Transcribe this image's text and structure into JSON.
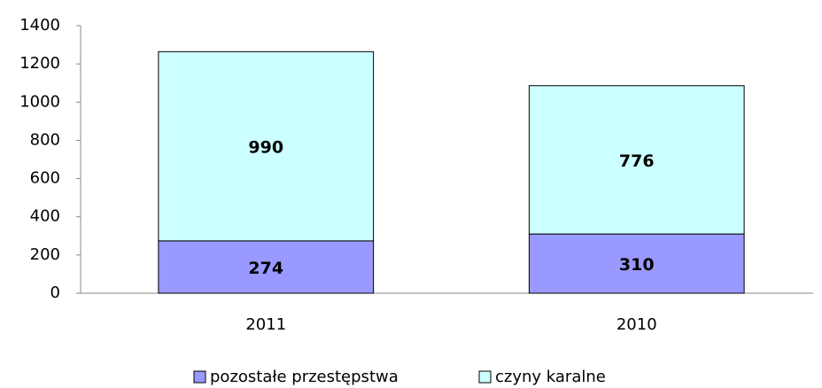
{
  "chart_data": {
    "type": "bar",
    "stacked": true,
    "categories": [
      "2011",
      "2010"
    ],
    "series": [
      {
        "name": "pozostałe przestępstwa",
        "color": "#9999ff",
        "values": [
          274,
          310
        ]
      },
      {
        "name": "czyny karalne",
        "color": "#ccffff",
        "values": [
          990,
          776
        ]
      }
    ],
    "ylim": [
      0,
      1400
    ],
    "yticks": [
      0,
      200,
      400,
      600,
      800,
      1000,
      1200,
      1400
    ],
    "grid": false,
    "legend": "bottom"
  }
}
